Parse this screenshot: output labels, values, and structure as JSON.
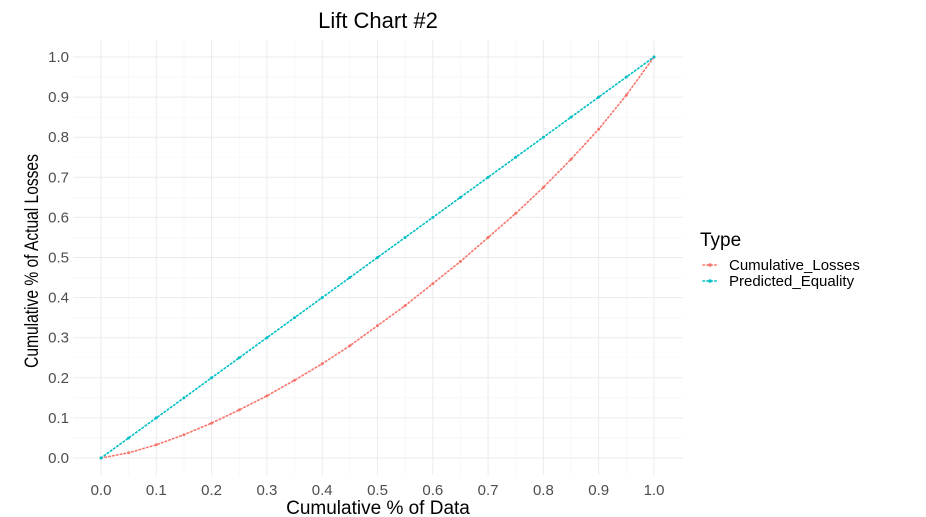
{
  "chart_data": {
    "type": "line",
    "title": "Lift Chart #2",
    "xlabel": "Cumulative % of Data",
    "ylabel": "Cumulative % of Actual Losses",
    "xlim": [
      0,
      1
    ],
    "ylim": [
      0,
      1
    ],
    "x_ticks": [
      "0.0",
      "0.1",
      "0.2",
      "0.3",
      "0.4",
      "0.5",
      "0.6",
      "0.7",
      "0.8",
      "0.9",
      "1.0"
    ],
    "y_ticks": [
      "0.0",
      "0.1",
      "0.2",
      "0.3",
      "0.4",
      "0.5",
      "0.6",
      "0.7",
      "0.8",
      "0.9",
      "1.0"
    ],
    "grid": true,
    "legend": {
      "title": "Type",
      "position": "right"
    },
    "series": [
      {
        "name": "Cumulative_Losses",
        "color": "#f8766d",
        "x": [
          0.0,
          0.05,
          0.1,
          0.15,
          0.2,
          0.25,
          0.3,
          0.35,
          0.4,
          0.45,
          0.5,
          0.55,
          0.6,
          0.65,
          0.7,
          0.75,
          0.8,
          0.85,
          0.9,
          0.95,
          1.0
        ],
        "y": [
          0.0,
          0.013,
          0.033,
          0.058,
          0.087,
          0.12,
          0.155,
          0.194,
          0.235,
          0.28,
          0.33,
          0.38,
          0.435,
          0.49,
          0.55,
          0.61,
          0.675,
          0.745,
          0.82,
          0.905,
          1.0
        ]
      },
      {
        "name": "Predicted_Equality",
        "color": "#00bfc4",
        "x": [
          0.0,
          0.05,
          0.1,
          0.15,
          0.2,
          0.25,
          0.3,
          0.35,
          0.4,
          0.45,
          0.5,
          0.55,
          0.6,
          0.65,
          0.7,
          0.75,
          0.8,
          0.85,
          0.9,
          0.95,
          1.0
        ],
        "y": [
          0.0,
          0.05,
          0.1,
          0.15,
          0.2,
          0.25,
          0.3,
          0.35,
          0.4,
          0.45,
          0.5,
          0.55,
          0.6,
          0.65,
          0.7,
          0.75,
          0.8,
          0.85,
          0.9,
          0.95,
          1.0
        ]
      }
    ]
  }
}
